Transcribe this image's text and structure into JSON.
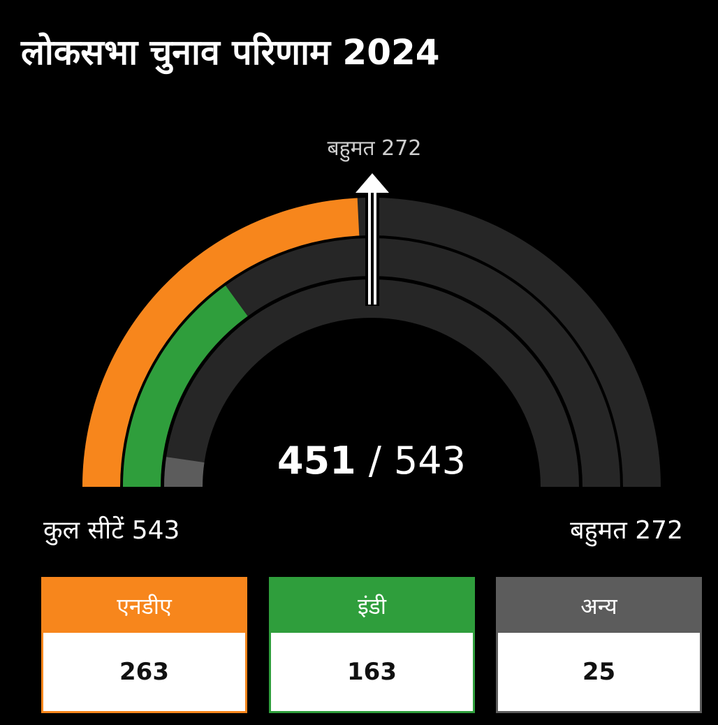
{
  "title": "लोकसभा चुनाव परिणाम 2024",
  "center_label": {
    "counted": "451",
    "separator": "/",
    "total": "543"
  },
  "majority_marker_label": "बहुमत 272",
  "footer": {
    "total_seats_label": "कुल सीटें 543",
    "majority_label": "बहुमत 272"
  },
  "colors": {
    "nda": "#f7861c",
    "india": "#2f9e3c",
    "others": "#5c5c5c",
    "track": "#262626"
  },
  "chart_data": {
    "type": "gauge",
    "title": "लोकसभा चुनाव परिणाम 2024",
    "total": 543,
    "majority": 272,
    "counted": 451,
    "series": [
      {
        "name": "एनडीए",
        "value": 263,
        "color": "#f7861c"
      },
      {
        "name": "इंडी",
        "value": 163,
        "color": "#2f9e3c"
      },
      {
        "name": "अन्य",
        "value": 25,
        "color": "#5c5c5c"
      }
    ]
  },
  "cards": [
    {
      "label": "एनडीए",
      "value": "263",
      "color": "#f7861c"
    },
    {
      "label": "इंडी",
      "value": "163",
      "color": "#2f9e3c"
    },
    {
      "label": "अन्य",
      "value": "25",
      "color": "#5c5c5c"
    }
  ]
}
